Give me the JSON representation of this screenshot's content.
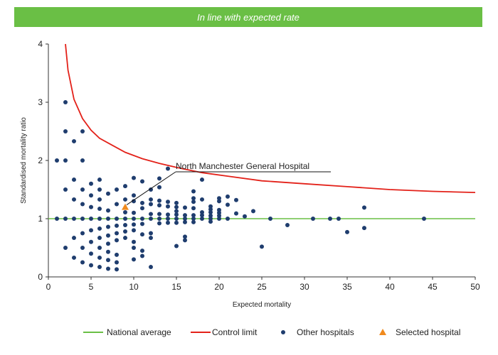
{
  "banner": {
    "text": "In line with expected rate",
    "color": "#6abf45"
  },
  "chart_data": {
    "type": "scatter",
    "title": "",
    "xlabel": "Expected mortality",
    "ylabel": "Standardised mortality ratio",
    "xlim": [
      0,
      50
    ],
    "ylim": [
      0,
      4
    ],
    "xticks": [
      "0",
      "5",
      "10",
      "15",
      "20",
      "25",
      "30",
      "35",
      "40",
      "45",
      "50"
    ],
    "yticks": [
      "0",
      "1",
      "2",
      "3",
      "4"
    ],
    "grid": false,
    "legend_position": "bottom-right",
    "national_average": 1,
    "series": [
      {
        "name": "Control limit",
        "kind": "line",
        "color": "#e32119",
        "points": [
          [
            2,
            4.0
          ],
          [
            2.3,
            3.55
          ],
          [
            3,
            3.05
          ],
          [
            4,
            2.72
          ],
          [
            5,
            2.52
          ],
          [
            6,
            2.38
          ],
          [
            7.5,
            2.26
          ],
          [
            9,
            2.14
          ],
          [
            11,
            2.03
          ],
          [
            13,
            1.95
          ],
          [
            15,
            1.88
          ],
          [
            18,
            1.79
          ],
          [
            21,
            1.73
          ],
          [
            25,
            1.65
          ],
          [
            30,
            1.6
          ],
          [
            35,
            1.55
          ],
          [
            40,
            1.5
          ],
          [
            45,
            1.47
          ],
          [
            50,
            1.45
          ]
        ]
      },
      {
        "name": "Other hospitals",
        "kind": "points",
        "color": "#1f3d6e",
        "points": [
          [
            1,
            1
          ],
          [
            2,
            1
          ],
          [
            3,
            1
          ],
          [
            4,
            1
          ],
          [
            5,
            1
          ],
          [
            6,
            1
          ],
          [
            7,
            1
          ],
          [
            8,
            1
          ],
          [
            9,
            1
          ],
          [
            10,
            1
          ],
          [
            11,
            1
          ],
          [
            12,
            1
          ],
          [
            13,
            1
          ],
          [
            14,
            1
          ],
          [
            15,
            1
          ],
          [
            16,
            1
          ],
          [
            17,
            1
          ],
          [
            18,
            1
          ],
          [
            19,
            1
          ],
          [
            20,
            1
          ],
          [
            21,
            1
          ],
          [
            26,
            1
          ],
          [
            31,
            1
          ],
          [
            33,
            1
          ],
          [
            34,
            1
          ],
          [
            44,
            1
          ],
          [
            1,
            2
          ],
          [
            2,
            3
          ],
          [
            2,
            2.5
          ],
          [
            2,
            2
          ],
          [
            2,
            1.5
          ],
          [
            2,
            0.5
          ],
          [
            3,
            2.33
          ],
          [
            3,
            1.67
          ],
          [
            3,
            1.33
          ],
          [
            3,
            0.67
          ],
          [
            3,
            0.33
          ],
          [
            4,
            2.5
          ],
          [
            4,
            2
          ],
          [
            4,
            1.5
          ],
          [
            4,
            1.25
          ],
          [
            4,
            0.75
          ],
          [
            4,
            0.5
          ],
          [
            4,
            0.25
          ],
          [
            5,
            1.6
          ],
          [
            5,
            1.4
          ],
          [
            5,
            1.2
          ],
          [
            5,
            0.8
          ],
          [
            5,
            0.6
          ],
          [
            5,
            0.4
          ],
          [
            5,
            0.2
          ],
          [
            6,
            1.67
          ],
          [
            6,
            1.5
          ],
          [
            6,
            1.33
          ],
          [
            6,
            1.17
          ],
          [
            6,
            0.83
          ],
          [
            6,
            0.67
          ],
          [
            6,
            0.5
          ],
          [
            6,
            0.33
          ],
          [
            6,
            0.17
          ],
          [
            7,
            1.43
          ],
          [
            7,
            1.14
          ],
          [
            7,
            0.86
          ],
          [
            7,
            0.71
          ],
          [
            7,
            0.57
          ],
          [
            7,
            0.43
          ],
          [
            7,
            0.29
          ],
          [
            7,
            0.14
          ],
          [
            8,
            1.5
          ],
          [
            8,
            1.25
          ],
          [
            8,
            0.88
          ],
          [
            8,
            0.75
          ],
          [
            8,
            0.63
          ],
          [
            8,
            0.38
          ],
          [
            8,
            0.25
          ],
          [
            8,
            0.13
          ],
          [
            9,
            1.56
          ],
          [
            9,
            1.33
          ],
          [
            9,
            1.11
          ],
          [
            9,
            0.89
          ],
          [
            9,
            0.78
          ],
          [
            9,
            0.67
          ],
          [
            10,
            1.7
          ],
          [
            10,
            1.4
          ],
          [
            10,
            1.3
          ],
          [
            10,
            1.1
          ],
          [
            10,
            0.9
          ],
          [
            10,
            0.8
          ],
          [
            10,
            0.6
          ],
          [
            10,
            0.5
          ],
          [
            10,
            0.3
          ],
          [
            11,
            1.64
          ],
          [
            11,
            1.27
          ],
          [
            11,
            1.18
          ],
          [
            11,
            0.91
          ],
          [
            11,
            0.73
          ],
          [
            11,
            0.45
          ],
          [
            11,
            0.36
          ],
          [
            12,
            1.5
          ],
          [
            12,
            1.33
          ],
          [
            12,
            1.25
          ],
          [
            12,
            1.08
          ],
          [
            12,
            0.75
          ],
          [
            12,
            0.67
          ],
          [
            12,
            0.17
          ],
          [
            13,
            1.69
          ],
          [
            13,
            1.54
          ],
          [
            13,
            1.31
          ],
          [
            13,
            1.23
          ],
          [
            13,
            1.08
          ],
          [
            13,
            0.92
          ],
          [
            14,
            1.86
          ],
          [
            14,
            1.29
          ],
          [
            14,
            1.21
          ],
          [
            14,
            1.07
          ],
          [
            14,
            0.93
          ],
          [
            15,
            1.27
          ],
          [
            15,
            1.2
          ],
          [
            15,
            1.13
          ],
          [
            15,
            1.07
          ],
          [
            15,
            0.93
          ],
          [
            15,
            0.53
          ],
          [
            16,
            1.19
          ],
          [
            16,
            1.06
          ],
          [
            16,
            0.94
          ],
          [
            16,
            0.69
          ],
          [
            16,
            0.63
          ],
          [
            17,
            1.47
          ],
          [
            17,
            1.35
          ],
          [
            17,
            1.29
          ],
          [
            17,
            1.18
          ],
          [
            17,
            1.06
          ],
          [
            17,
            0.94
          ],
          [
            18,
            1.67
          ],
          [
            18,
            1.33
          ],
          [
            18,
            1.11
          ],
          [
            18,
            1.06
          ],
          [
            19,
            1.21
          ],
          [
            19,
            1.16
          ],
          [
            19,
            1.11
          ],
          [
            19,
            1.05
          ],
          [
            19,
            0.95
          ],
          [
            20,
            1.35
          ],
          [
            20,
            1.3
          ],
          [
            20,
            1.15
          ],
          [
            20,
            1.1
          ],
          [
            20,
            1.05
          ],
          [
            21,
            1.38
          ],
          [
            21,
            1.24
          ],
          [
            22,
            1.32
          ],
          [
            22,
            1.09
          ],
          [
            23,
            1.04
          ],
          [
            24,
            1.13
          ],
          [
            25,
            0.52
          ],
          [
            28,
            0.89
          ],
          [
            35,
            0.77
          ],
          [
            37,
            1.19
          ],
          [
            37,
            0.84
          ]
        ]
      },
      {
        "name": "Selected hospital",
        "kind": "points",
        "color": "#f08a1d",
        "points": [
          [
            9,
            1.2
          ]
        ]
      }
    ],
    "annotation": {
      "text": "North Manchester General Hospital",
      "points_to": [
        9,
        1.2
      ]
    },
    "legend": [
      {
        "label": "National average",
        "color": "#6abf45",
        "symbol": "line"
      },
      {
        "label": "Control limit",
        "color": "#e32119",
        "symbol": "line"
      },
      {
        "label": "Other hospitals",
        "color": "#1f3d6e",
        "symbol": "dot"
      },
      {
        "label": "Selected hospital",
        "color": "#f08a1d",
        "symbol": "triangle"
      }
    ]
  }
}
